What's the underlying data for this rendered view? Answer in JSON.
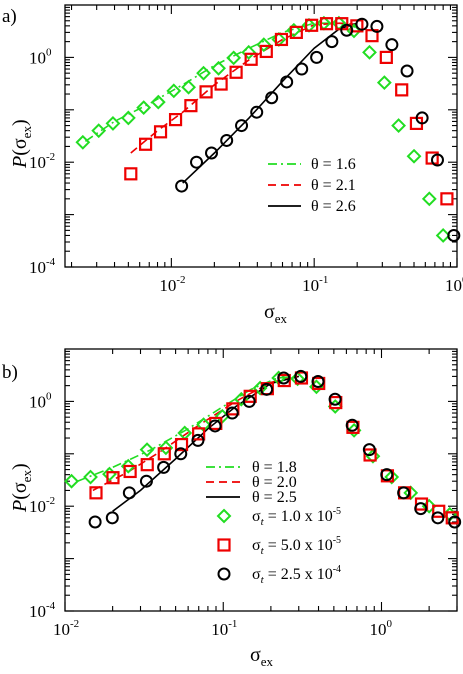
{
  "colors": {
    "green": "#22dd22",
    "red": "#ee0000",
    "black": "#000000"
  },
  "chart_data": [
    {
      "type": "scatter",
      "panel_label": "a)",
      "xlabel_main": "σ",
      "xlabel_sub": "ex",
      "ylabel_pre": "P",
      "ylabel_open": "(σ",
      "ylabel_sub": "ex",
      "ylabel_close": ")",
      "xscale": "log",
      "yscale": "log",
      "xlim": [
        0.0018,
        1.0
      ],
      "ylim": [
        0.0001,
        10
      ],
      "xticks": [
        {
          "v": 0.01,
          "base": "10",
          "exp": "-2"
        },
        {
          "v": 0.1,
          "base": "10",
          "exp": "-1"
        },
        {
          "v": 1,
          "base": "10",
          "exp": "0"
        }
      ],
      "yticks": [
        {
          "v": 0.0001,
          "base": "10",
          "exp": "-4"
        },
        {
          "v": 0.01,
          "base": "10",
          "exp": "-2"
        },
        {
          "v": 1,
          "base": "10",
          "exp": "0"
        }
      ],
      "legend": [
        {
          "label": "θ = 1.6",
          "dash": "dashdot",
          "color": "green"
        },
        {
          "label": "θ = 2.1",
          "dash": "dash",
          "color": "red"
        },
        {
          "label": "θ = 2.6",
          "dash": "solid",
          "color": "black"
        }
      ],
      "series": [
        {
          "name": "θ = 1.6",
          "kind": "line",
          "dash": "dashdot",
          "color": "green",
          "x": [
            0.0025,
            0.004,
            0.007,
            0.012,
            0.02,
            0.035,
            0.06,
            0.1,
            0.15,
            0.2
          ],
          "y": [
            0.025,
            0.06,
            0.13,
            0.3,
            0.7,
            1.5,
            3.0,
            4.5,
            4.5,
            3.7
          ]
        },
        {
          "name": "θ = 2.1",
          "kind": "line",
          "dash": "dash",
          "color": "red",
          "x": [
            0.0052,
            0.008,
            0.012,
            0.02,
            0.035,
            0.06,
            0.1,
            0.15,
            0.2
          ],
          "y": [
            0.015,
            0.04,
            0.09,
            0.3,
            0.9,
            2.2,
            4.2,
            4.5,
            4.3
          ]
        },
        {
          "name": "θ = 2.6",
          "kind": "line",
          "dash": "solid",
          "color": "black",
          "x": [
            0.012,
            0.02,
            0.035,
            0.06,
            0.1,
            0.15,
            0.2
          ],
          "y": [
            0.004,
            0.015,
            0.07,
            0.35,
            1.5,
            3.5,
            4.5
          ]
        },
        {
          "name": "",
          "kind": "marker",
          "marker": "diamond",
          "color": "green",
          "x": [
            0.0024,
            0.0031,
            0.0039,
            0.005,
            0.0064,
            0.0081,
            0.0104,
            0.0132,
            0.0168,
            0.0214,
            0.0273,
            0.0348,
            0.0444,
            0.0566,
            0.072,
            0.092,
            0.117,
            0.149,
            0.19,
            0.244,
            0.31,
            0.39,
            0.5,
            0.64,
            0.8
          ],
          "y": [
            0.024,
            0.04,
            0.055,
            0.07,
            0.11,
            0.14,
            0.23,
            0.27,
            0.5,
            0.62,
            0.98,
            1.25,
            1.75,
            2.2,
            3.3,
            4.1,
            4.5,
            4.5,
            3.2,
            1.25,
            0.33,
            0.05,
            0.013,
            0.002,
            0.0004
          ]
        },
        {
          "name": "",
          "kind": "marker",
          "marker": "square",
          "color": "red",
          "x": [
            0.0052,
            0.0066,
            0.0084,
            0.0107,
            0.0137,
            0.0175,
            0.0223,
            0.0284,
            0.0362,
            0.0462,
            0.059,
            0.075,
            0.096,
            0.122,
            0.156,
            0.199,
            0.254,
            0.32,
            0.41,
            0.52,
            0.67,
            0.85
          ],
          "y": [
            0.006,
            0.022,
            0.038,
            0.065,
            0.12,
            0.22,
            0.31,
            0.52,
            0.92,
            1.3,
            2.2,
            3.0,
            4.1,
            4.4,
            4.4,
            4.0,
            2.6,
            1.0,
            0.24,
            0.055,
            0.012,
            0.002
          ]
        },
        {
          "name": "",
          "kind": "marker",
          "marker": "circle",
          "color": "black",
          "x": [
            0.0118,
            0.015,
            0.0191,
            0.0244,
            0.031,
            0.0396,
            0.0504,
            0.0642,
            0.0818,
            0.104,
            0.133,
            0.169,
            0.216,
            0.275,
            0.35,
            0.447,
            0.57,
            0.73,
            0.95
          ],
          "y": [
            0.0035,
            0.01,
            0.015,
            0.026,
            0.05,
            0.09,
            0.17,
            0.34,
            0.6,
            1.0,
            2.0,
            3.3,
            4.3,
            3.9,
            1.75,
            0.55,
            0.07,
            0.011,
            0.0004
          ]
        }
      ]
    },
    {
      "type": "scatter",
      "panel_label": "b)",
      "xlabel_main": "σ",
      "xlabel_sub": "ex",
      "ylabel_pre": "P",
      "ylabel_open": "(σ",
      "ylabel_sub": "ex",
      "ylabel_close": ")",
      "xscale": "log",
      "yscale": "log",
      "xlim": [
        0.01,
        3.0
      ],
      "ylim": [
        0.0001,
        10
      ],
      "xticks": [
        {
          "v": 0.01,
          "base": "10",
          "exp": "-2"
        },
        {
          "v": 0.1,
          "base": "10",
          "exp": "-1"
        },
        {
          "v": 1,
          "base": "10",
          "exp": "0"
        }
      ],
      "yticks": [
        {
          "v": 0.0001,
          "base": "10",
          "exp": "-4"
        },
        {
          "v": 0.01,
          "base": "10",
          "exp": "-2"
        },
        {
          "v": 1,
          "base": "10",
          "exp": "0"
        }
      ],
      "legend_lines": [
        {
          "label": "θ = 1.8",
          "dash": "dashdot",
          "color": "green"
        },
        {
          "label": "θ = 2.0",
          "dash": "dash",
          "color": "red"
        },
        {
          "label": "θ = 2.5",
          "dash": "solid",
          "color": "black"
        }
      ],
      "legend_markers": [
        {
          "marker": "diamond",
          "color": "green",
          "sym": "σ",
          "sub": "t",
          "text": " = 1.0 x 10",
          "sup": "-5"
        },
        {
          "marker": "square",
          "color": "red",
          "sym": "σ",
          "sub": "t",
          "text": " = 5.0 x 10",
          "sup": "-5"
        },
        {
          "marker": "circle",
          "color": "black",
          "sym": "σ",
          "sub": "t",
          "text": " = 2.5 x 10",
          "sup": "-4"
        }
      ],
      "series": [
        {
          "name": "θ = 1.8",
          "kind": "line",
          "dash": "dashdot",
          "color": "green",
          "x": [
            0.012,
            0.02,
            0.035,
            0.06,
            0.1,
            0.15,
            0.22,
            0.3
          ],
          "y": [
            0.03,
            0.055,
            0.12,
            0.3,
            0.8,
            1.7,
            2.8,
            3.0
          ]
        },
        {
          "name": "θ = 2.0",
          "kind": "line",
          "dash": "dash",
          "color": "red",
          "x": [
            0.015,
            0.025,
            0.04,
            0.07,
            0.12,
            0.2,
            0.3
          ],
          "y": [
            0.02,
            0.045,
            0.11,
            0.35,
            1.0,
            2.3,
            3.0
          ]
        },
        {
          "name": "θ = 2.5",
          "kind": "line",
          "dash": "solid",
          "color": "black",
          "x": [
            0.02,
            0.03,
            0.05,
            0.08,
            0.12,
            0.2,
            0.3
          ],
          "y": [
            0.008,
            0.02,
            0.08,
            0.3,
            0.8,
            2.2,
            3.0
          ]
        },
        {
          "name": "",
          "kind": "marker",
          "marker": "diamond",
          "color": "green",
          "x": [
            0.011,
            0.0145,
            0.0191,
            0.0251,
            0.033,
            0.0434,
            0.0571,
            0.0751,
            0.0987,
            0.13,
            0.171,
            0.224,
            0.295,
            0.388,
            0.51,
            0.671,
            0.883,
            1.16,
            1.53,
            2.0,
            2.7
          ],
          "y": [
            0.03,
            0.036,
            0.041,
            0.058,
            0.12,
            0.13,
            0.25,
            0.36,
            0.52,
            1.1,
            1.8,
            2.8,
            2.7,
            1.9,
            0.8,
            0.28,
            0.09,
            0.036,
            0.018,
            0.01,
            0.007
          ]
        },
        {
          "name": "",
          "kind": "marker",
          "marker": "square",
          "color": "red",
          "x": [
            0.0157,
            0.0201,
            0.0258,
            0.0331,
            0.0424,
            0.0545,
            0.0699,
            0.0897,
            0.115,
            0.148,
            0.19,
            0.243,
            0.312,
            0.401,
            0.514,
            0.66,
            0.847,
            1.09,
            1.4,
            1.79,
            2.3,
            2.8
          ],
          "y": [
            0.018,
            0.035,
            0.046,
            0.062,
            0.1,
            0.15,
            0.24,
            0.38,
            0.72,
            1.25,
            1.75,
            2.5,
            2.8,
            2.2,
            0.95,
            0.32,
            0.095,
            0.038,
            0.018,
            0.011,
            0.008,
            0.006
          ]
        },
        {
          "name": "",
          "kind": "marker",
          "marker": "circle",
          "color": "black",
          "x": [
            0.0155,
            0.0199,
            0.0255,
            0.0327,
            0.042,
            0.0539,
            0.0692,
            0.0888,
            0.114,
            0.146,
            0.188,
            0.241,
            0.309,
            0.397,
            0.509,
            0.653,
            0.838,
            1.08,
            1.38,
            1.77,
            2.27,
            2.9
          ],
          "y": [
            0.005,
            0.006,
            0.018,
            0.03,
            0.055,
            0.1,
            0.18,
            0.34,
            0.6,
            1.0,
            1.7,
            2.8,
            3.0,
            2.4,
            1.1,
            0.35,
            0.12,
            0.04,
            0.018,
            0.009,
            0.006,
            0.005
          ]
        }
      ]
    }
  ]
}
